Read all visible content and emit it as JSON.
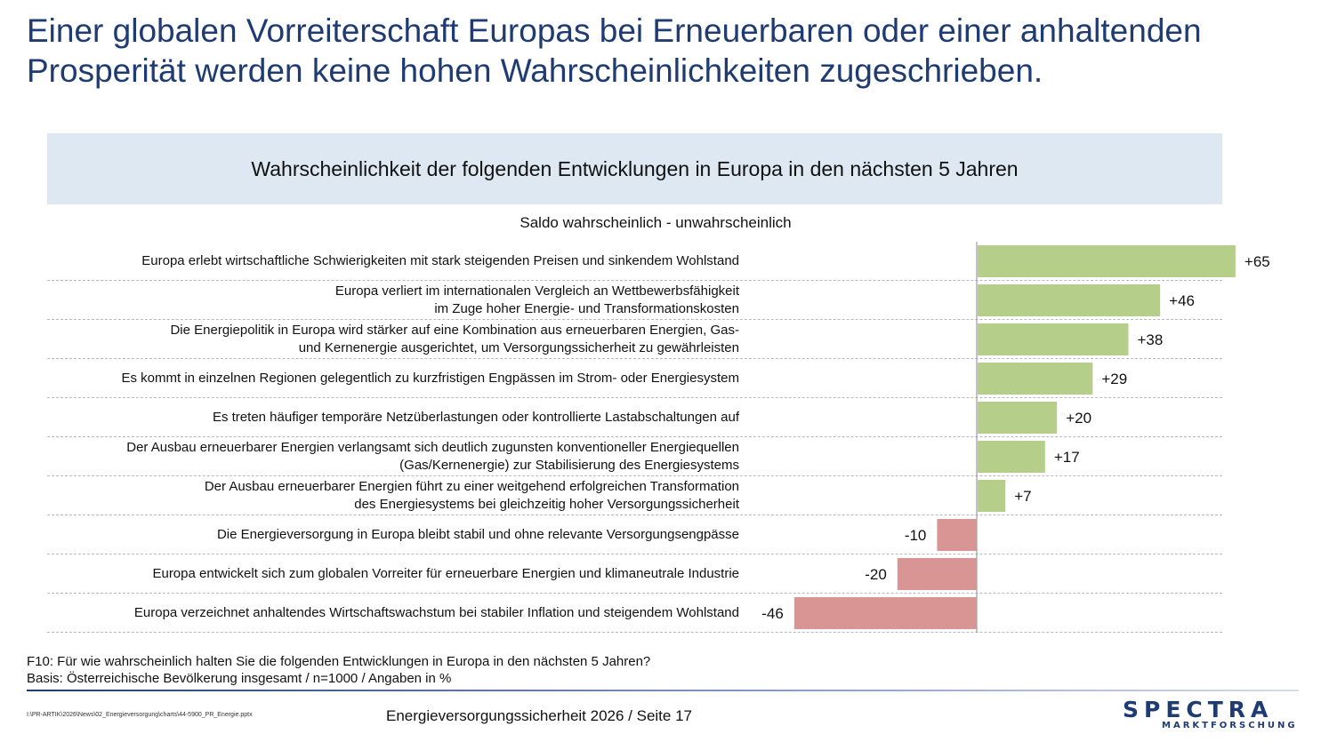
{
  "headline": "Einer globalen Vorreiterschaft Europas bei Erneuerbaren oder einer anhaltenden Prosperität werden keine hohen Wahrscheinlichkeiten zugeschrieben.",
  "colors": {
    "positive": "#b5cf8a",
    "negative": "#d99594",
    "title": "#1f3b73",
    "band": "#dde8f2"
  },
  "chart_data": {
    "type": "bar",
    "orientation": "horizontal",
    "title": "Wahrscheinlichkeit der folgenden Entwicklungen in Europa in den nächsten 5 Jahren",
    "subtitle": "Saldo wahrscheinlich - unwahrscheinlich",
    "xlim": [
      -46,
      65
    ],
    "grid": false,
    "categories": [
      "Europa erlebt wirtschaftliche Schwierigkeiten mit stark steigenden Preisen und sinkendem Wohlstand",
      "Europa verliert im internationalen Vergleich an Wettbewerbsfähigkeit\nim Zuge hoher Energie- und Transformationskosten",
      "Die Energiepolitik in Europa wird stärker auf eine Kombination aus erneuerbaren Energien, Gas-\nund Kernenergie ausgerichtet, um Versorgungssicherheit zu gewährleisten",
      "Es kommt in einzelnen Regionen gelegentlich zu kurzfristigen Engpässen im Strom- oder Energiesystem",
      "Es treten häufiger temporäre Netzüberlastungen oder kontrollierte Lastabschaltungen auf",
      "Der Ausbau erneuerbarer Energien verlangsamt sich deutlich zugunsten konventioneller Energiequellen\n(Gas/Kernenergie) zur Stabilisierung des Energiesystems",
      "Der Ausbau erneuerbarer Energien führt zu einer weitgehend erfolgreichen Transformation\ndes Energiesystems bei gleichzeitig hoher Versorgungssicherheit",
      "Die Energieversorgung in Europa bleibt stabil und ohne relevante Versorgungsengpässe",
      "Europa entwickelt sich zum globalen Vorreiter für erneuerbare Energien und klimaneutrale Industrie",
      "Europa verzeichnet anhaltendes Wirtschaftswachstum bei stabiler Inflation und steigendem Wohlstand"
    ],
    "values": [
      65,
      46,
      38,
      29,
      20,
      17,
      7,
      -10,
      -20,
      -46
    ],
    "value_labels": [
      "+65",
      "+46",
      "+38",
      "+29",
      "+20",
      "+17",
      "+7",
      "-10",
      "-20",
      "-46"
    ]
  },
  "footnote": {
    "question": "F10: Für wie wahrscheinlich halten Sie die folgenden Entwicklungen in Europa in den nächsten 5 Jahren?",
    "basis": "Basis: Österreichische Bevölkerung insgesamt / n=1000 / Angaben in %"
  },
  "footer": {
    "file_path": "I:\\PR-ARTIK\\2026\\News\\02_Energieversorgung\\charts\\44-5900_PR_Energie.pptx",
    "page_label": "Energieversorgungssicherheit 2026  /  Seite 17"
  },
  "logo": {
    "name": "SPECTRA",
    "tagline": "MARKTFORSCHUNG"
  }
}
